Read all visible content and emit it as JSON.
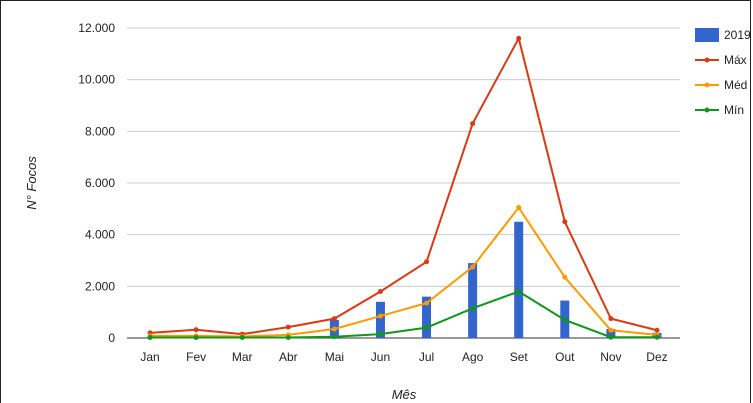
{
  "chart_data": {
    "type": "bar+line",
    "title": "",
    "xlabel": "Mês",
    "ylabel": "N° Focos",
    "ylim": [
      0,
      12000
    ],
    "yticks": [
      0,
      2000,
      4000,
      6000,
      8000,
      10000,
      12000
    ],
    "ytick_labels": [
      "0",
      "2.000",
      "4.000",
      "6.000",
      "8.000",
      "10.000",
      "12.000"
    ],
    "categories": [
      "Jan",
      "Fev",
      "Mar",
      "Abr",
      "Mai",
      "Jun",
      "Jul",
      "Ago",
      "Set",
      "Out",
      "Nov",
      "Dez"
    ],
    "grid": true,
    "legend_position": "right",
    "series": [
      {
        "name": "2019",
        "kind": "bar",
        "color": "#3366cc",
        "values": [
          30,
          20,
          30,
          60,
          700,
          1400,
          1600,
          2900,
          4500,
          1450,
          350,
          200
        ]
      },
      {
        "name": "Máx",
        "kind": "line",
        "color": "#dc3912",
        "values": [
          200,
          320,
          150,
          420,
          750,
          1800,
          2950,
          8300,
          11600,
          4500,
          750,
          300
        ]
      },
      {
        "name": "Méd",
        "kind": "line",
        "color": "#ff9900",
        "values": [
          80,
          80,
          60,
          120,
          350,
          850,
          1350,
          2750,
          5050,
          2350,
          300,
          120
        ]
      },
      {
        "name": "Mín",
        "kind": "line",
        "color": "#109618",
        "values": [
          20,
          20,
          20,
          20,
          50,
          150,
          400,
          1150,
          1800,
          700,
          30,
          30
        ]
      }
    ]
  }
}
